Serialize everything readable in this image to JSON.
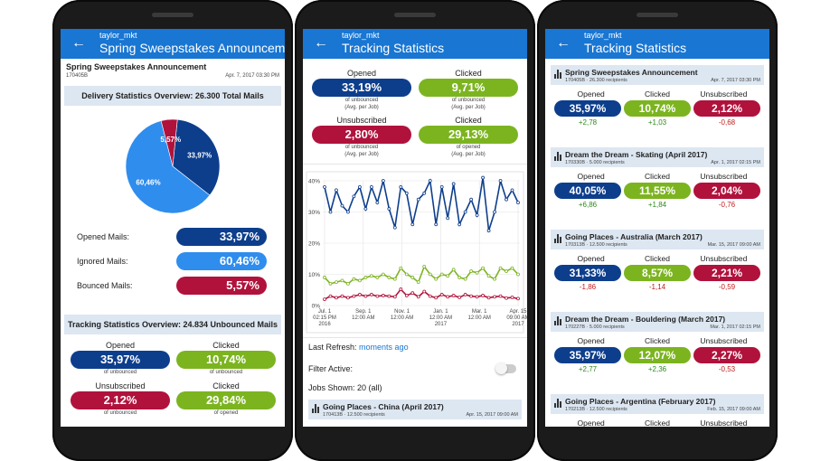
{
  "colors": {
    "appbar": "#1976d2",
    "navy": "#0d3e8c",
    "green": "#7cb420",
    "red": "#b0123c",
    "sky": "#2f8ded"
  },
  "phone1": {
    "appbar": {
      "user": "taylor_mkt",
      "title": "Spring Sweepstakes Announceme..."
    },
    "job": {
      "name": "Spring Sweepstakes Announcement",
      "id": "170405B",
      "date": "Apr. 7, 2017 03:30 PM"
    },
    "delivery_header": "Delivery Statistics Overview: 26.300 Total Mails",
    "chart_data": {
      "type": "pie",
      "labels": [
        "33,97%",
        "60,46%",
        "5,57%"
      ],
      "values": [
        33.97,
        60.46,
        5.57
      ],
      "colors": [
        "#0d3e8c",
        "#2f8ded",
        "#b0123c"
      ]
    },
    "mails": [
      {
        "label": "Opened Mails:",
        "value": "33,97%",
        "color": "navy"
      },
      {
        "label": "Ignored Mails:",
        "value": "60,46%",
        "color": "sky"
      },
      {
        "label": "Bounced Mails:",
        "value": "5,57%",
        "color": "red"
      }
    ],
    "tracking_header": "Tracking Statistics Overview: 24.834 Unbounced Mails",
    "tracking": {
      "opened": {
        "label": "Opened",
        "value": "35,97%",
        "sub": "of unbounced"
      },
      "clicked": {
        "label": "Clicked",
        "value": "10,74%",
        "sub": "of unbounced"
      },
      "unsubscribed": {
        "label": "Unsubscribed",
        "value": "2,12%",
        "sub": "of unbounced"
      },
      "clicked2": {
        "label": "Clicked",
        "value": "29,84%",
        "sub": "of opened"
      }
    }
  },
  "phone2": {
    "appbar": {
      "user": "taylor_mkt",
      "title": "Tracking Statistics"
    },
    "summary": {
      "opened": {
        "label": "Opened",
        "value": "33,19%",
        "sub1": "of unbounced",
        "sub2": "(Avg. per Job)"
      },
      "clicked": {
        "label": "Clicked",
        "value": "9,71%",
        "sub1": "of unbounced",
        "sub2": "(Avg. per Job)"
      },
      "unsubscribed": {
        "label": "Unsubscribed",
        "value": "2,80%",
        "sub1": "of unbounced",
        "sub2": "(Avg. per Job)"
      },
      "clicked2": {
        "label": "Clicked",
        "value": "29,13%",
        "sub1": "of opened",
        "sub2": "(Avg. per Job)"
      }
    },
    "chart_data": {
      "type": "line",
      "y_ticks": [
        "40%",
        "30%",
        "20%",
        "10%",
        "0%"
      ],
      "ylim": [
        0,
        40
      ],
      "x_ticks": [
        {
          "l1": "Jul. 1",
          "l2": "02:15 PM",
          "l3": "2016"
        },
        {
          "l1": "Sep. 1",
          "l2": "12:00 AM",
          "l3": ""
        },
        {
          "l1": "Nov. 1",
          "l2": "12:00 AM",
          "l3": ""
        },
        {
          "l1": "Jan. 1",
          "l2": "12:00 AM",
          "l3": "2017"
        },
        {
          "l1": "Mar. 1",
          "l2": "12:00 AM",
          "l3": ""
        },
        {
          "l1": "Apr. 15",
          "l2": "09:00 AM",
          "l3": "2017"
        }
      ],
      "series": [
        {
          "color": "#0d3e8c",
          "values": [
            38,
            30,
            37,
            32,
            30,
            35,
            38,
            31,
            38,
            33,
            40,
            31,
            25,
            38,
            36,
            26,
            34,
            36,
            40,
            26,
            38,
            28,
            39,
            26,
            30,
            34,
            29,
            41,
            24,
            30,
            40,
            34,
            37,
            33
          ]
        },
        {
          "color": "#7cb420",
          "values": [
            9,
            7,
            7.5,
            8,
            7,
            8.5,
            8,
            9,
            9.5,
            9,
            10,
            9,
            8.5,
            12,
            10,
            9,
            7.5,
            12.5,
            10,
            8.5,
            10,
            9.5,
            11.5,
            9,
            8.5,
            11,
            10.5,
            12,
            9.5,
            8.5,
            12,
            11,
            12,
            10
          ]
        },
        {
          "color": "#b0123c",
          "values": [
            2,
            3,
            2.5,
            3,
            2.5,
            3,
            3.5,
            3,
            3.5,
            3,
            3.2,
            3,
            2.8,
            5.2,
            3.2,
            4,
            2.8,
            4.5,
            3,
            2.5,
            3.5,
            2.8,
            3.2,
            2.6,
            3.5,
            3,
            2.8,
            3.2,
            2.5,
            2.8,
            3,
            2.4,
            2.6,
            2.2
          ]
        }
      ]
    },
    "last_refresh_label": "Last Refresh:",
    "last_refresh_value": "moments ago",
    "filter_label": "Filter Active:",
    "jobs_shown": "Jobs Shown: 20 (all)",
    "job": {
      "name": "Going Places - China (April 2017)",
      "meta": "170413B · 12.500 recipients",
      "date": "Apr. 15, 2017 09:00 AM"
    }
  },
  "phone3": {
    "appbar": {
      "user": "taylor_mkt",
      "title": "Tracking Statistics"
    },
    "labels": {
      "opened": "Opened",
      "clicked": "Clicked",
      "unsubscribed": "Unsubscribed"
    },
    "jobs": [
      {
        "name": "Spring Sweepstakes Announcement",
        "meta": "170405B · 26.300 recipients",
        "date": "Apr. 7, 2017 03:30 PM",
        "opened": "35,97%",
        "clicked": "10,74%",
        "unsubscribed": "2,12%",
        "d_opened": "+2,78",
        "d_clicked": "+1,03",
        "d_unsubscribed": "-0,68"
      },
      {
        "name": "Dream the Dream - Skating (April 2017)",
        "meta": "170330B · 5.000 recipients",
        "date": "Apr. 1, 2017 02:15 PM",
        "opened": "40,05%",
        "clicked": "11,55%",
        "unsubscribed": "2,04%",
        "d_opened": "+6,86",
        "d_clicked": "+1,84",
        "d_unsubscribed": "-0,76"
      },
      {
        "name": "Going Places - Australia (March 2017)",
        "meta": "170313B · 12.500 recipients",
        "date": "Mar. 15, 2017 09:00 AM",
        "opened": "31,33%",
        "clicked": "8,57%",
        "unsubscribed": "2,21%",
        "d_opened": "-1,86",
        "d_clicked": "-1,14",
        "d_unsubscribed": "-0,59"
      },
      {
        "name": "Dream the Dream - Bouldering (March 2017)",
        "meta": "170227B · 5.000 recipients",
        "date": "Mar. 1, 2017 02:15 PM",
        "opened": "35,97%",
        "clicked": "12,07%",
        "unsubscribed": "2,27%",
        "d_opened": "+2,77",
        "d_clicked": "+2,36",
        "d_unsubscribed": "-0,53"
      },
      {
        "name": "Going Places - Argentina (February 2017)",
        "meta": "170213B · 12.500 recipients",
        "date": "Feb. 15, 2017 09:00 AM",
        "opened": "Opened",
        "clicked": "Clicked",
        "unsubscribed": "Unsubscribed"
      }
    ]
  }
}
